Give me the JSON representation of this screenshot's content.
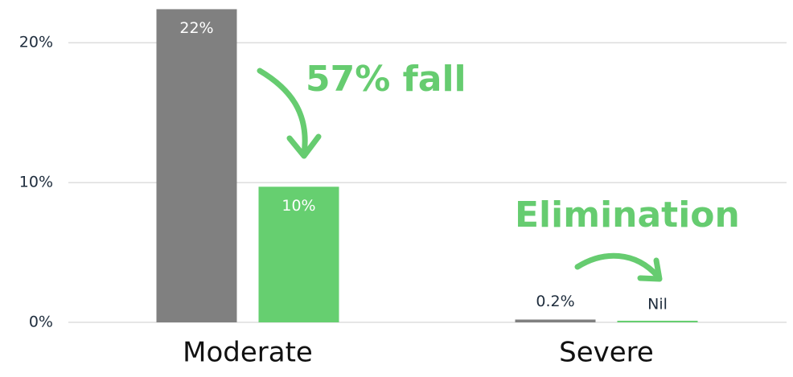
{
  "chart_data": {
    "type": "bar",
    "categories": [
      "Moderate",
      "Severe"
    ],
    "series": [
      {
        "color": "#808080",
        "values": [
          22.4,
          0.2
        ],
        "value_labels": [
          "22%",
          "0.2%"
        ]
      },
      {
        "color": "#66cf70",
        "values": [
          9.7,
          0
        ],
        "value_labels": [
          "10%",
          "Nil"
        ]
      }
    ],
    "ylim": [
      0,
      23
    ],
    "yticks": [
      {
        "value": 0,
        "label": "0%"
      },
      {
        "value": 10,
        "label": "10%"
      },
      {
        "value": 20,
        "label": "20%"
      }
    ],
    "grid": true,
    "annotations": [
      "57% fall",
      "Elimination"
    ]
  }
}
